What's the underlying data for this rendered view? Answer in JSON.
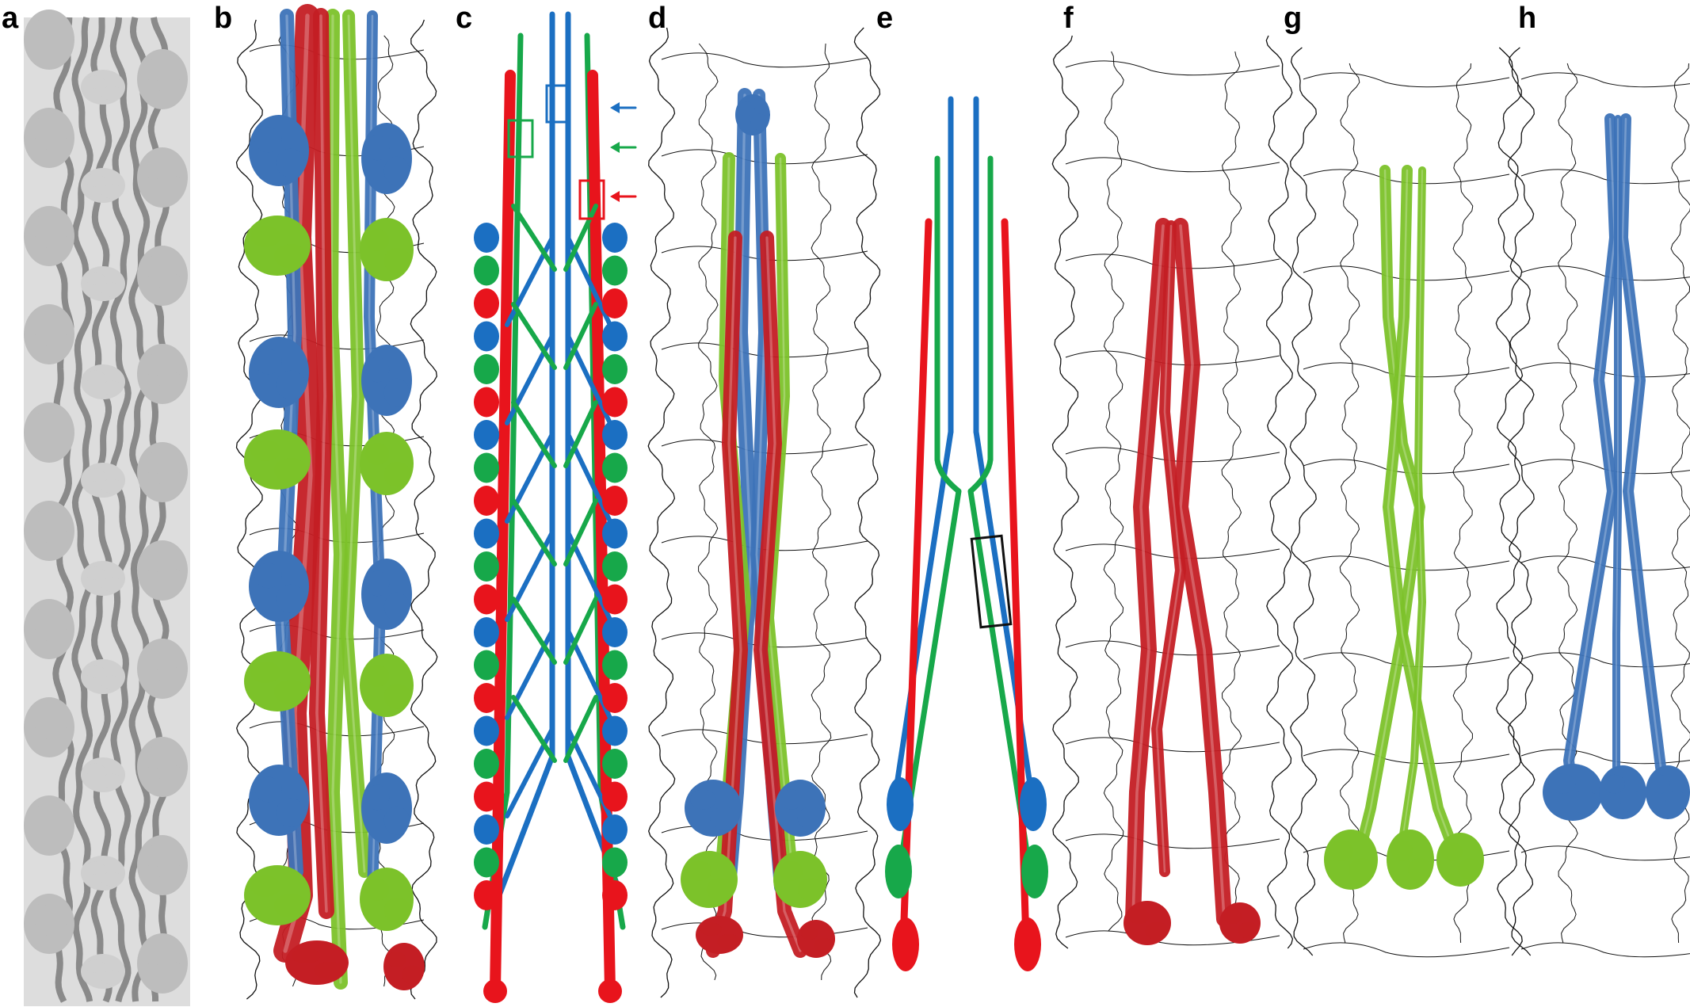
{
  "panels": [
    {
      "label": "a",
      "kind": "density-map-grey"
    },
    {
      "label": "b",
      "kind": "density-map-coloured"
    },
    {
      "label": "c",
      "kind": "schematic"
    },
    {
      "label": "d",
      "kind": "density-map-coloured"
    },
    {
      "label": "e",
      "kind": "schematic"
    },
    {
      "label": "f",
      "kind": "density-map-single"
    },
    {
      "label": "g",
      "kind": "density-map-single"
    },
    {
      "label": "h",
      "kind": "density-map-single"
    }
  ],
  "colors": {
    "red": "#e8141c",
    "green": "#17a84a",
    "blue": "#1b6fc2",
    "map_red": "#c41e24",
    "map_green": "#7cc22a",
    "map_blue": "#3d73b8",
    "grey": "#bdbdbd",
    "outline": "#111111"
  }
}
